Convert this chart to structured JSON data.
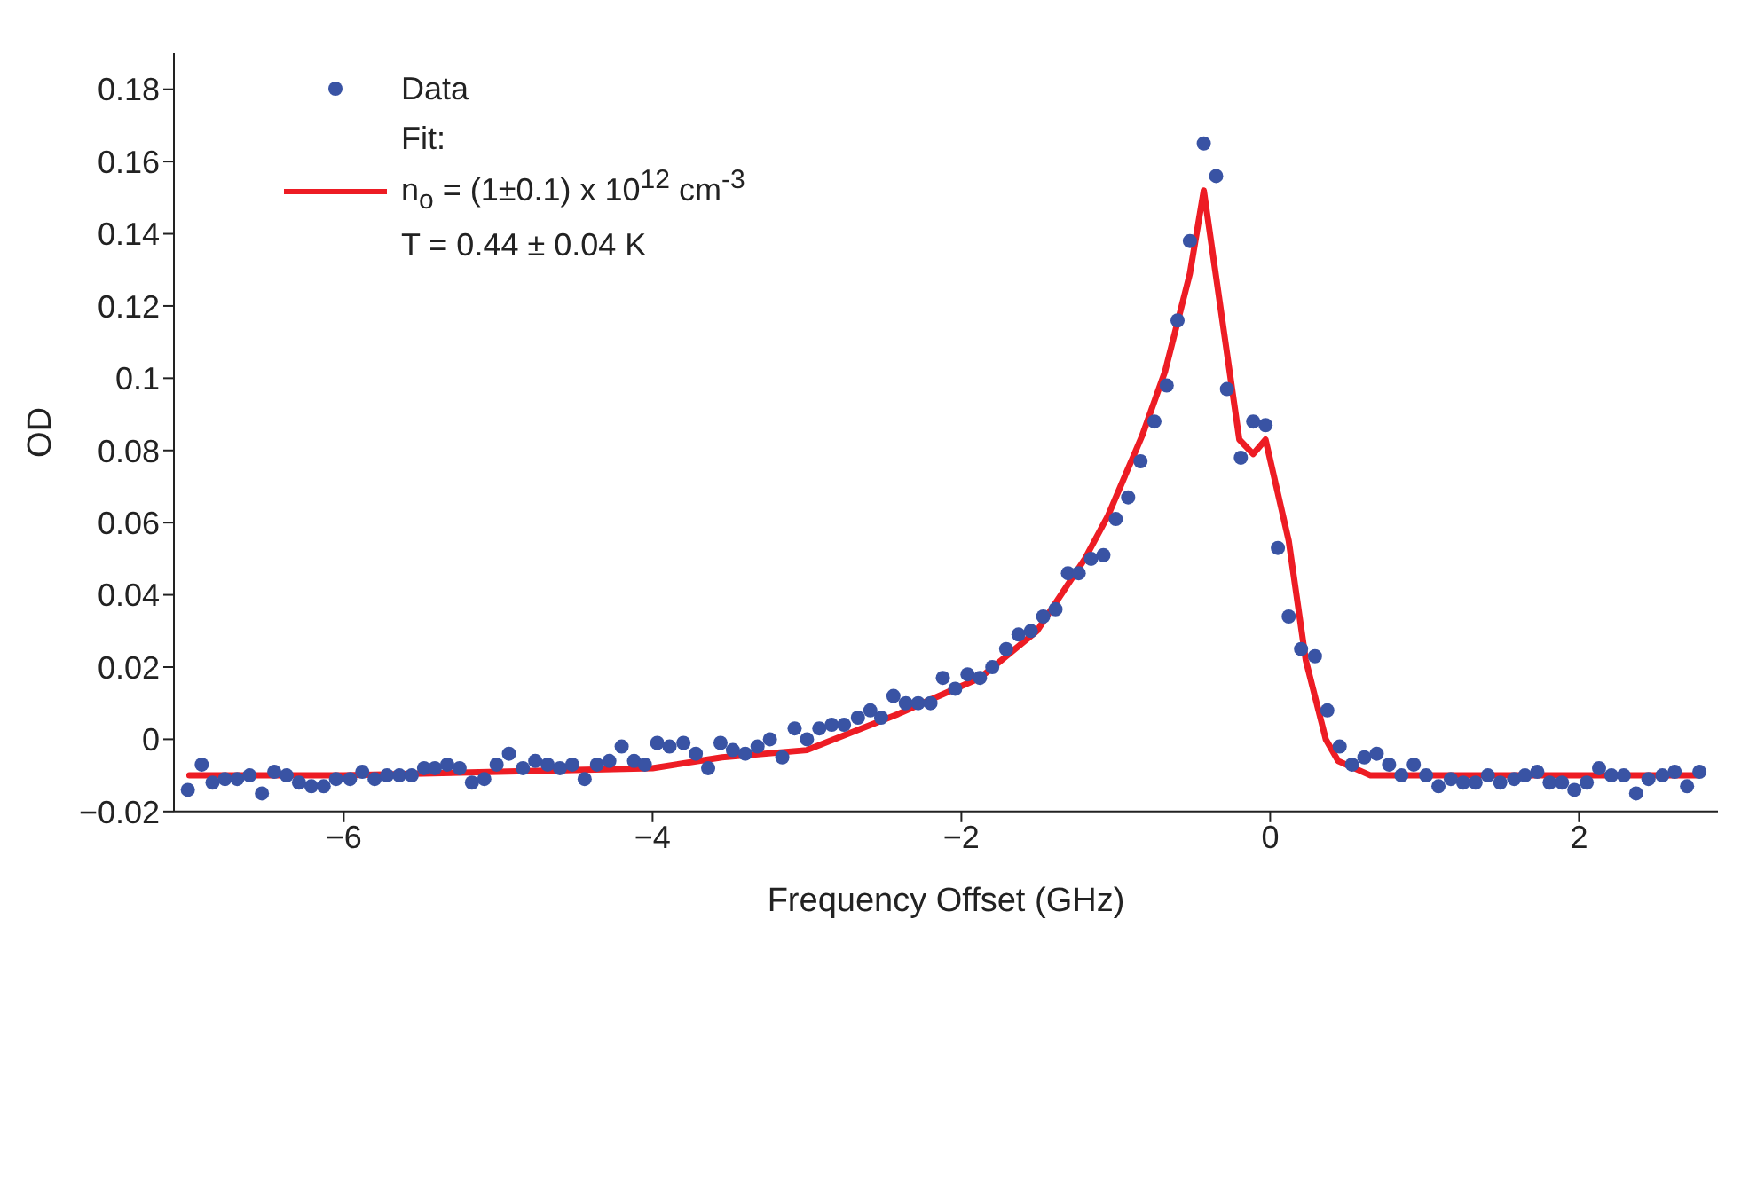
{
  "chart_data": {
    "type": "scatter",
    "xlabel": "Frequency Offset (GHz)",
    "ylabel": "OD",
    "xlim": [
      -7.1,
      2.9
    ],
    "xticks": [
      -6,
      -4,
      -2,
      0,
      2
    ],
    "ylim": [
      -0.02,
      0.19
    ],
    "yticks": [
      -0.02,
      0,
      0.02,
      0.04,
      0.06,
      0.08,
      0.1,
      0.12,
      0.14,
      0.16,
      0.18
    ],
    "grid": false,
    "legend": "top left",
    "marker": "circle",
    "series": [
      {
        "name": "Data",
        "color": "#3953a4",
        "x": [
          -7.01,
          -6.92,
          -6.85,
          -6.77,
          -6.69,
          -6.61,
          -6.53,
          -6.45,
          -6.37,
          -6.29,
          -6.21,
          -6.13,
          -6.05,
          -5.96,
          -5.88,
          -5.8,
          -5.72,
          -5.64,
          -5.56,
          -5.48,
          -5.41,
          -5.33,
          -5.25,
          -5.17,
          -5.09,
          -5.01,
          -4.93,
          -4.84,
          -4.76,
          -4.68,
          -4.6,
          -4.52,
          -4.44,
          -4.36,
          -4.28,
          -4.2,
          -4.12,
          -4.05,
          -3.97,
          -3.89,
          -3.8,
          -3.72,
          -3.64,
          -3.56,
          -3.48,
          -3.4,
          -3.32,
          -3.24,
          -3.16,
          -3.08,
          -3.0,
          -2.92,
          -2.84,
          -2.76,
          -2.67,
          -2.59,
          -2.52,
          -2.44,
          -2.36,
          -2.28,
          -2.2,
          -2.12,
          -2.04,
          -1.96,
          -1.88,
          -1.8,
          -1.71,
          -1.63,
          -1.55,
          -1.47,
          -1.39,
          -1.31,
          -1.24,
          -1.16,
          -1.08,
          -1.0,
          -0.92,
          -0.84,
          -0.75,
          -0.67,
          -0.6,
          -0.52,
          -0.43,
          -0.35,
          -0.28,
          -0.19,
          -0.11,
          -0.03,
          0.05,
          0.12,
          0.2,
          0.29,
          0.37,
          0.45,
          0.53,
          0.61,
          0.69,
          0.77,
          0.85,
          0.93,
          1.01,
          1.09,
          1.17,
          1.25,
          1.33,
          1.41,
          1.49,
          1.58,
          1.65,
          1.73,
          1.81,
          1.89,
          1.97,
          2.05,
          2.13,
          2.21,
          2.29,
          2.37,
          2.45,
          2.54,
          2.62,
          2.7,
          2.78
        ],
        "values": [
          -0.014,
          -0.007,
          -0.012,
          -0.011,
          -0.011,
          -0.01,
          -0.015,
          -0.009,
          -0.01,
          -0.012,
          -0.013,
          -0.013,
          -0.011,
          -0.011,
          -0.009,
          -0.011,
          -0.01,
          -0.01,
          -0.01,
          -0.008,
          -0.008,
          -0.007,
          -0.008,
          -0.012,
          -0.011,
          -0.007,
          -0.004,
          -0.008,
          -0.006,
          -0.007,
          -0.008,
          -0.007,
          -0.011,
          -0.007,
          -0.006,
          -0.002,
          -0.006,
          -0.007,
          -0.001,
          -0.002,
          -0.001,
          -0.004,
          -0.008,
          -0.001,
          -0.003,
          -0.004,
          -0.002,
          0.0,
          -0.005,
          0.003,
          0.0,
          0.003,
          0.004,
          0.004,
          0.006,
          0.008,
          0.006,
          0.012,
          0.01,
          0.01,
          0.01,
          0.017,
          0.014,
          0.018,
          0.017,
          0.02,
          0.025,
          0.029,
          0.03,
          0.034,
          0.036,
          0.046,
          0.046,
          0.05,
          0.051,
          0.061,
          0.067,
          0.077,
          0.088,
          0.098,
          0.116,
          0.138,
          0.165,
          0.156,
          0.097,
          0.078,
          0.088,
          0.087,
          0.053,
          0.034,
          0.025,
          0.023,
          0.008,
          -0.002,
          -0.007,
          -0.005,
          -0.004,
          -0.007,
          -0.01,
          -0.007,
          -0.01,
          -0.013,
          -0.011,
          -0.012,
          -0.012,
          -0.01,
          -0.012,
          -0.011,
          -0.01,
          -0.009,
          -0.012,
          -0.012,
          -0.014,
          -0.012,
          -0.008,
          -0.01,
          -0.01,
          -0.015,
          -0.011,
          -0.01,
          -0.009,
          -0.013,
          -0.009
        ]
      },
      {
        "name": "Fit:\nn$_{o}$ = (1±0.1) x 10$^{12}$ cm$^{-3}$\nT = 0.44 ± 0.04  K",
        "type": "line",
        "color": "#ed1c24",
        "marker": "none",
        "line_style": "solid",
        "x": [
          -7.0,
          -6.0,
          -5.0,
          -4.0,
          -3.55,
          -3.0,
          -2.41,
          -1.88,
          -1.51,
          -1.2,
          -1.05,
          -0.83,
          -0.68,
          -0.52,
          -0.43,
          -0.2,
          -0.11,
          -0.03,
          0.12,
          0.23,
          0.36,
          0.44,
          0.65,
          1.5,
          2.76
        ],
        "values": [
          -0.01,
          -0.01,
          -0.009,
          -0.008,
          -0.005,
          -0.003,
          0.007,
          0.017,
          0.03,
          0.05,
          0.062,
          0.084,
          0.102,
          0.129,
          0.152,
          0.083,
          0.079,
          0.083,
          0.055,
          0.022,
          0.0,
          -0.006,
          -0.01,
          -0.01,
          -0.01
        ]
      }
    ]
  }
}
